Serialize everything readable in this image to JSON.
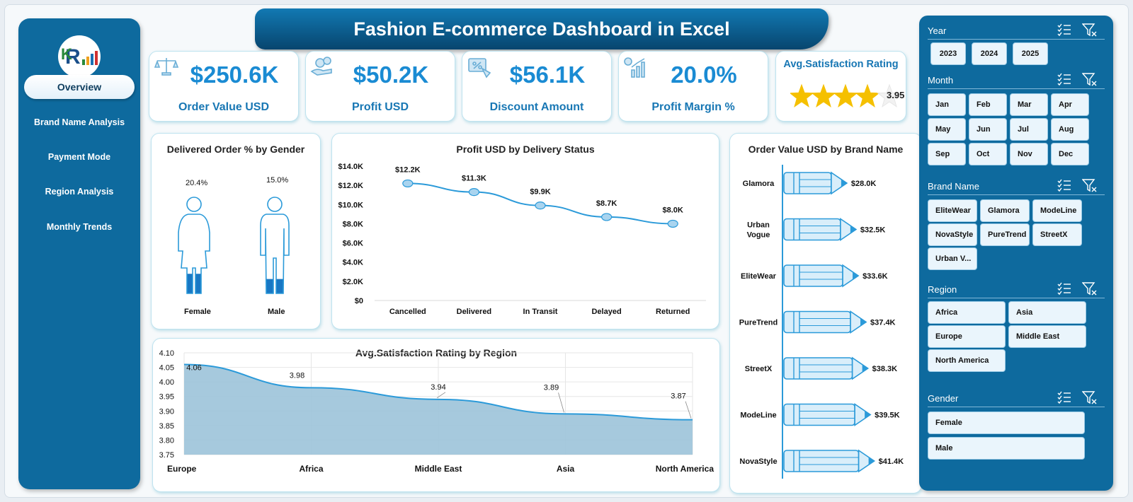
{
  "header": {
    "title": "Fashion E-commerce Dashboard  in Excel"
  },
  "nav": {
    "items": [
      {
        "label": "Overview",
        "active": true
      },
      {
        "label": "Brand Name Analysis"
      },
      {
        "label": "Payment Mode"
      },
      {
        "label": "Region  Analysis"
      },
      {
        "label": "Monthly Trends"
      }
    ]
  },
  "kpis": [
    {
      "value": "$250.6K",
      "label": "Order Value USD",
      "icon": "scale-icon"
    },
    {
      "value": "$50.2K",
      "label": "Profit USD",
      "icon": "money-hand-icon"
    },
    {
      "value": "$56.1K",
      "label": "Discount Amount",
      "icon": "discount-tag-icon"
    },
    {
      "value": "20.0%",
      "label": "Profit Margin %",
      "icon": "growth-chart-icon"
    }
  ],
  "rating": {
    "title": "Avg.Satisfaction Rating",
    "value": "3.95",
    "stars_max": 5,
    "stars_value": 3.95
  },
  "colors": {
    "accent": "#1a8bd3",
    "nav": "#0e6a9e",
    "chart_line": "#2b9ad9",
    "area_fill": "#9cc3d9"
  },
  "gender_chart": {
    "title": "Delivered Order % by Gender",
    "items": [
      {
        "label": "Female",
        "value_label": "20.4%",
        "value": 20.4
      },
      {
        "label": "Male",
        "value_label": "15.0%",
        "value": 15.0
      }
    ]
  },
  "profit_chart": {
    "title": "Profit USD by Delivery Status",
    "y_ticks": [
      "$14.0K",
      "$12.0K",
      "$10.0K",
      "$8.0K",
      "$6.0K",
      "$4.0K",
      "$2.0K",
      "$0"
    ]
  },
  "brand_chart": {
    "title": "Order Value USD by Brand Name"
  },
  "region_chart": {
    "title": "Avg.Satisfaction Rating by Region",
    "y_ticks": [
      "4.10",
      "4.05",
      "4.00",
      "3.95",
      "3.90",
      "3.85",
      "3.80",
      "3.75"
    ]
  },
  "chart_data": [
    {
      "type": "line",
      "title": "Profit USD by Delivery Status",
      "categories": [
        "Cancelled",
        "Delivered",
        "In Transit",
        "Delayed",
        "Returned"
      ],
      "values": [
        12200,
        11300,
        9900,
        8700,
        8000
      ],
      "labels": [
        "$12.2K",
        "$11.3K",
        "$9.9K",
        "$8.7K",
        "$8.0K"
      ],
      "ylim": [
        0,
        14000
      ]
    },
    {
      "type": "bar",
      "title": "Order Value USD by Brand Name",
      "categories": [
        "Glamora",
        "Urban Vogue",
        "EliteWear",
        "PureTrend",
        "StreetX",
        "ModeLine",
        "NovaStyle"
      ],
      "values": [
        28000,
        32500,
        33600,
        37400,
        38300,
        39500,
        41400
      ],
      "labels": [
        "$28.0K",
        "$32.5K",
        "$33.6K",
        "$37.4K",
        "$38.3K",
        "$39.5K",
        "$41.4K"
      ]
    },
    {
      "type": "area",
      "title": "Avg.Satisfaction Rating by Region",
      "categories": [
        "Europe",
        "Africa",
        "Middle East",
        "Asia",
        "North America"
      ],
      "values": [
        4.06,
        3.98,
        3.94,
        3.89,
        3.87
      ],
      "labels": [
        "4.06",
        "3.98",
        "3.94",
        "3.89",
        "3.87"
      ],
      "ylim": [
        3.75,
        4.1
      ]
    }
  ],
  "slicers": {
    "year": {
      "title": "Year",
      "options": [
        "2023",
        "2024",
        "2025"
      ]
    },
    "month": {
      "title": "Month",
      "options": [
        "Jan",
        "Feb",
        "Mar",
        "Apr",
        "May",
        "Jun",
        "Jul",
        "Aug",
        "Sep",
        "Oct",
        "Nov",
        "Dec"
      ]
    },
    "brand": {
      "title": "Brand Name",
      "options": [
        "EliteWear",
        "Glamora",
        "ModeLine",
        "NovaStyle",
        "PureTrend",
        "StreetX",
        "Urban V..."
      ]
    },
    "region": {
      "title": "Region",
      "options": [
        "Africa",
        "Asia",
        "Europe",
        "Middle East",
        "North America"
      ]
    },
    "gender": {
      "title": "Gender",
      "options": [
        "Female",
        "Male"
      ]
    }
  }
}
